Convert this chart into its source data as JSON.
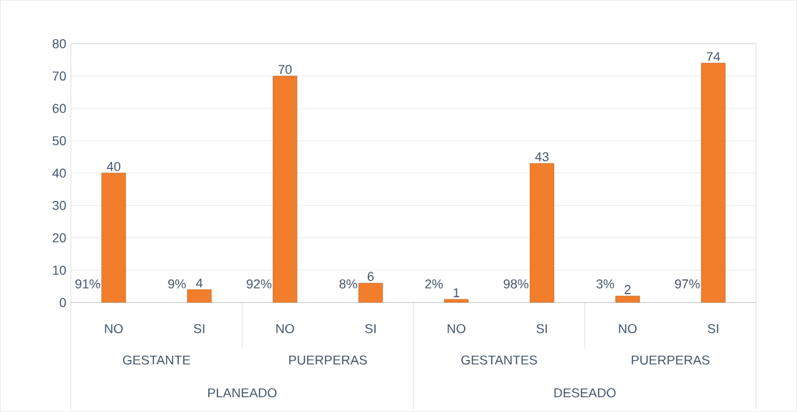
{
  "chart_data": {
    "type": "bar",
    "categories": [
      "NO",
      "SI",
      "NO",
      "SI",
      "NO",
      "SI",
      "NO",
      "SI"
    ],
    "values": [
      40,
      4,
      70,
      6,
      1,
      43,
      2,
      74
    ],
    "color": "#f27d2a",
    "ylim": [
      0,
      80
    ],
    "yticks": [
      0,
      10,
      20,
      30,
      40,
      50,
      60,
      70,
      80
    ],
    "grid": "y",
    "data_labels": true,
    "annotations": [
      "91%",
      "9%",
      "92%",
      "8%",
      "2%",
      "98%",
      "3%",
      "97%",
      "GESTANTE",
      "PUERPERAS",
      "GESTANTES",
      "PUERPERAS",
      "PLANEADO",
      "DESEADO"
    ]
  }
}
